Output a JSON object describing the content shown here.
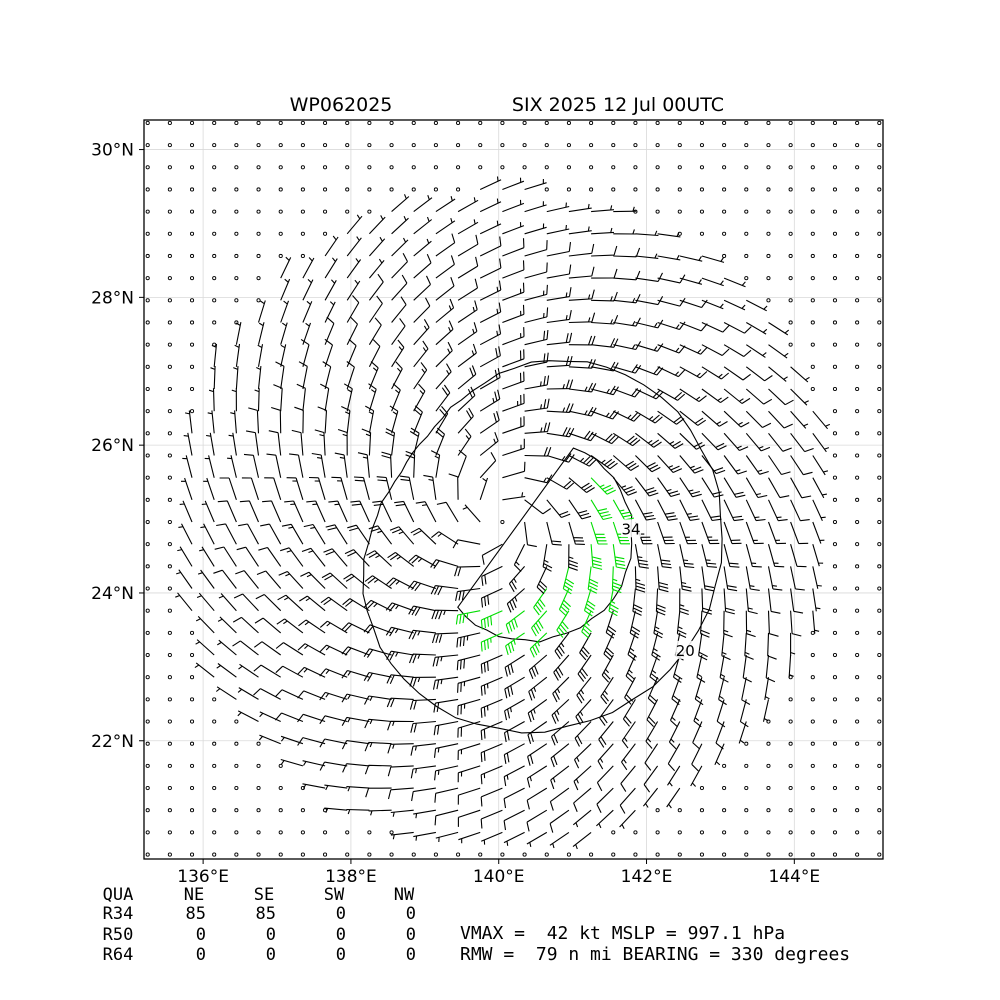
{
  "title_left": "WP062025",
  "title_right": "SIX 2025 12 Jul 00UTC",
  "chart_data": {
    "type": "wind-barb-map",
    "x_axis": {
      "range": [
        135.2,
        145.2
      ],
      "ticks": [
        136,
        138,
        140,
        142,
        144
      ],
      "tick_labels": [
        "136°E",
        "138°E",
        "140°E",
        "142°E",
        "144°E"
      ]
    },
    "y_axis": {
      "range": [
        20.4,
        30.4
      ],
      "ticks": [
        22,
        24,
        26,
        28,
        30
      ],
      "tick_labels": [
        "22°N",
        "24°N",
        "26°N",
        "28°N",
        "30°N"
      ]
    },
    "grid": true,
    "storm_center": {
      "lon": 140.0,
      "lat": 25.05
    },
    "rmw_nmi": 79,
    "vmax_kt": 42,
    "barb_colors": {
      "below_34kt": "#000000",
      "34_to_50kt": "#00dd00",
      "50kt_plus": "#ffaa00"
    },
    "contours": [
      {
        "label": "20",
        "color": "#000000"
      },
      {
        "label": "34",
        "color": "#000000"
      }
    ],
    "wind_radii_table": {
      "header": [
        "QUA",
        "NE",
        "SE",
        "SW",
        "NW"
      ],
      "rows": [
        [
          "R34",
          "85",
          "85",
          "0",
          "0"
        ],
        [
          "R50",
          "0",
          "0",
          "0",
          "0"
        ],
        [
          "R64",
          "0",
          "0",
          "0",
          "0"
        ]
      ]
    },
    "summary_lines": [
      "VMAX =  42 kt MSLP = 997.1 hPa",
      "RMW =  79 n mi BEARING = 330 degrees"
    ]
  }
}
